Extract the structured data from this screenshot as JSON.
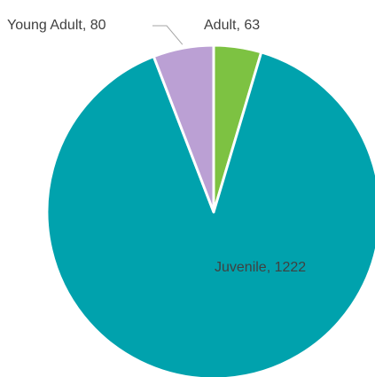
{
  "chart_data": {
    "type": "pie",
    "title": "",
    "categories": [
      "Adult",
      "Juvenile",
      "Young Adult"
    ],
    "values": [
      63,
      1222,
      80
    ],
    "colors": [
      "#7dc242",
      "#00a2ad",
      "#bba0d4"
    ],
    "labels": [
      "Adult, 63",
      "Juvenile, 1222",
      "Young Adult, 80"
    ],
    "start_angle": "12 o'clock",
    "direction": "clockwise",
    "legend": "none",
    "data_label_placement": {
      "Adult": "outside",
      "Juvenile": "inside",
      "Young Adult": "outside-with-leader-line"
    }
  }
}
